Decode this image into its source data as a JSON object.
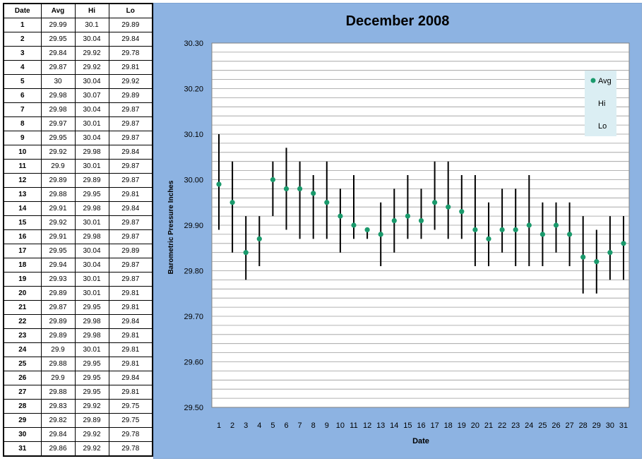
{
  "table": {
    "headers": [
      "Date",
      "Avg",
      "Hi",
      "Lo"
    ],
    "rows": [
      [
        "1",
        "29.99",
        "30.1",
        "29.89"
      ],
      [
        "2",
        "29.95",
        "30.04",
        "29.84"
      ],
      [
        "3",
        "29.84",
        "29.92",
        "29.78"
      ],
      [
        "4",
        "29.87",
        "29.92",
        "29.81"
      ],
      [
        "5",
        "30",
        "30.04",
        "29.92"
      ],
      [
        "6",
        "29.98",
        "30.07",
        "29.89"
      ],
      [
        "7",
        "29.98",
        "30.04",
        "29.87"
      ],
      [
        "8",
        "29.97",
        "30.01",
        "29.87"
      ],
      [
        "9",
        "29.95",
        "30.04",
        "29.87"
      ],
      [
        "10",
        "29.92",
        "29.98",
        "29.84"
      ],
      [
        "11",
        "29.9",
        "30.01",
        "29.87"
      ],
      [
        "12",
        "29.89",
        "29.89",
        "29.87"
      ],
      [
        "13",
        "29.88",
        "29.95",
        "29.81"
      ],
      [
        "14",
        "29.91",
        "29.98",
        "29.84"
      ],
      [
        "15",
        "29.92",
        "30.01",
        "29.87"
      ],
      [
        "16",
        "29.91",
        "29.98",
        "29.87"
      ],
      [
        "17",
        "29.95",
        "30.04",
        "29.89"
      ],
      [
        "18",
        "29.94",
        "30.04",
        "29.87"
      ],
      [
        "19",
        "29.93",
        "30.01",
        "29.87"
      ],
      [
        "20",
        "29.89",
        "30.01",
        "29.81"
      ],
      [
        "21",
        "29.87",
        "29.95",
        "29.81"
      ],
      [
        "22",
        "29.89",
        "29.98",
        "29.84"
      ],
      [
        "23",
        "29.89",
        "29.98",
        "29.81"
      ],
      [
        "24",
        "29.9",
        "30.01",
        "29.81"
      ],
      [
        "25",
        "29.88",
        "29.95",
        "29.81"
      ],
      [
        "26",
        "29.9",
        "29.95",
        "29.84"
      ],
      [
        "27",
        "29.88",
        "29.95",
        "29.81"
      ],
      [
        "28",
        "29.83",
        "29.92",
        "29.75"
      ],
      [
        "29",
        "29.82",
        "29.89",
        "29.75"
      ],
      [
        "30",
        "29.84",
        "29.92",
        "29.78"
      ],
      [
        "31",
        "29.86",
        "29.92",
        "29.78"
      ]
    ]
  },
  "chart_data": {
    "type": "scatter",
    "title": "December 2008",
    "xlabel": "Date",
    "ylabel": "Barometric Pressure Inches",
    "ylim": [
      29.5,
      30.3
    ],
    "yticks": [
      "29.50",
      "29.60",
      "29.70",
      "29.80",
      "29.90",
      "30.00",
      "30.10",
      "30.20",
      "30.30"
    ],
    "minor_grid_step": 0.02,
    "grid": true,
    "legend_position": "top-right",
    "legend": [
      "Avg",
      "Hi",
      "Lo"
    ],
    "x": [
      1,
      2,
      3,
      4,
      5,
      6,
      7,
      8,
      9,
      10,
      11,
      12,
      13,
      14,
      15,
      16,
      17,
      18,
      19,
      20,
      21,
      22,
      23,
      24,
      25,
      26,
      27,
      28,
      29,
      30,
      31
    ],
    "series": [
      {
        "name": "Avg",
        "values": [
          29.99,
          29.95,
          29.84,
          29.87,
          30,
          29.98,
          29.98,
          29.97,
          29.95,
          29.92,
          29.9,
          29.89,
          29.88,
          29.91,
          29.92,
          29.91,
          29.95,
          29.94,
          29.93,
          29.89,
          29.87,
          29.89,
          29.89,
          29.9,
          29.88,
          29.9,
          29.88,
          29.83,
          29.82,
          29.84,
          29.86
        ]
      },
      {
        "name": "Hi",
        "values": [
          30.1,
          30.04,
          29.92,
          29.92,
          30.04,
          30.07,
          30.04,
          30.01,
          30.04,
          29.98,
          30.01,
          29.89,
          29.95,
          29.98,
          30.01,
          29.98,
          30.04,
          30.04,
          30.01,
          30.01,
          29.95,
          29.98,
          29.98,
          30.01,
          29.95,
          29.95,
          29.95,
          29.92,
          29.89,
          29.92,
          29.92
        ]
      },
      {
        "name": "Lo",
        "values": [
          29.89,
          29.84,
          29.78,
          29.81,
          29.92,
          29.89,
          29.87,
          29.87,
          29.87,
          29.84,
          29.87,
          29.87,
          29.81,
          29.84,
          29.87,
          29.87,
          29.89,
          29.87,
          29.87,
          29.81,
          29.81,
          29.84,
          29.81,
          29.81,
          29.81,
          29.84,
          29.81,
          29.75,
          29.75,
          29.78,
          29.78
        ]
      }
    ],
    "colors": {
      "avg_marker": "#1a9a6c",
      "range_line": "#000000",
      "panel": "#8db3e2",
      "plot_bg": "#ffffff",
      "grid": "#9a9a9a",
      "legend_bg": "#dbeef3"
    }
  }
}
